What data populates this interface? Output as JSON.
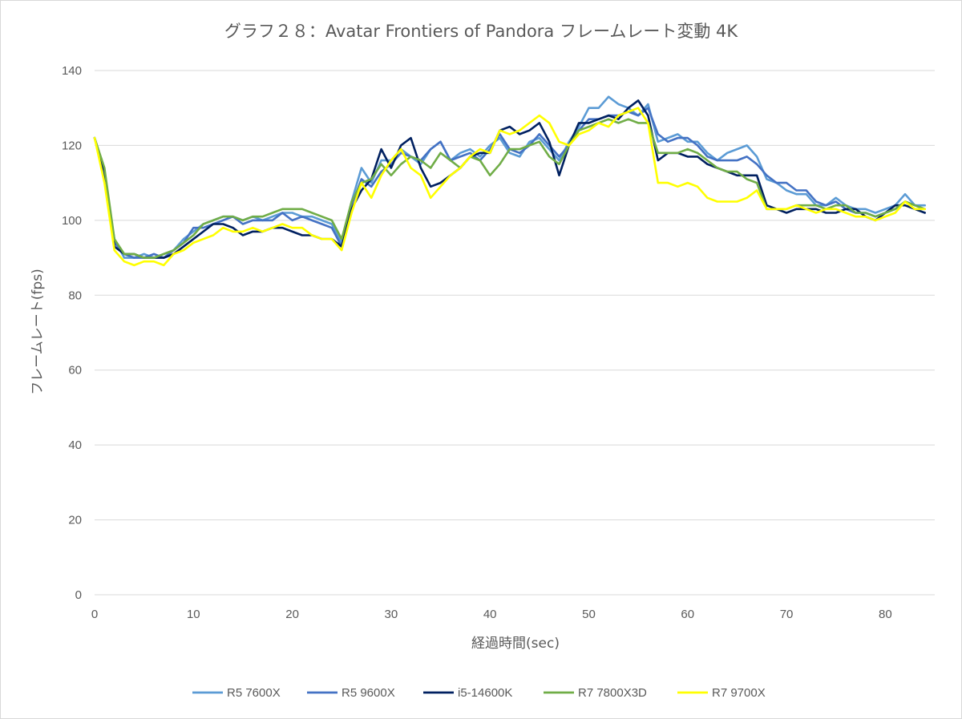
{
  "chart_data": {
    "type": "line",
    "title": "グラフ２８：Avatar Frontiers of Pandora フレームレート変動 4K",
    "xlabel": "経過時間(sec)",
    "ylabel": "フレームレート(fps)",
    "xlim": [
      0,
      85
    ],
    "ylim": [
      0,
      140
    ],
    "x_ticks": [
      0,
      10,
      20,
      30,
      40,
      50,
      60,
      70,
      80
    ],
    "y_ticks": [
      0,
      20,
      40,
      60,
      80,
      100,
      120,
      140
    ],
    "grid": "horizontal",
    "legend": "bottom",
    "series": [
      {
        "name": "R5 7600X",
        "color": "#5B9BD5",
        "x": [
          0,
          1,
          2,
          3,
          4,
          5,
          6,
          7,
          8,
          9,
          10,
          11,
          12,
          13,
          14,
          15,
          16,
          17,
          18,
          19,
          20,
          21,
          22,
          23,
          24,
          25,
          26,
          27,
          28,
          29,
          30,
          31,
          32,
          33,
          34,
          35,
          36,
          37,
          38,
          39,
          40,
          41,
          42,
          43,
          44,
          45,
          46,
          47,
          48,
          49,
          50,
          51,
          52,
          53,
          54,
          55,
          56,
          57,
          58,
          59,
          60,
          61,
          62,
          63,
          64,
          65,
          66,
          67,
          68,
          69,
          70,
          71,
          72,
          73,
          74,
          75,
          76,
          77,
          78,
          79,
          80,
          81,
          82,
          83,
          84
        ],
        "y": [
          122,
          112,
          95,
          90,
          90,
          91,
          90,
          91,
          92,
          95,
          97,
          99,
          100,
          101,
          101,
          100,
          101,
          100,
          101,
          102,
          102,
          101,
          101,
          100,
          99,
          94,
          105,
          114,
          110,
          116,
          116,
          119,
          117,
          115,
          119,
          121,
          116,
          118,
          119,
          117,
          120,
          122,
          118,
          117,
          121,
          122,
          119,
          116,
          121,
          125,
          130,
          130,
          133,
          131,
          130,
          128,
          131,
          121,
          122,
          123,
          121,
          121,
          118,
          116,
          118,
          119,
          120,
          117,
          111,
          110,
          108,
          107,
          107,
          104,
          104,
          106,
          104,
          103,
          103,
          102,
          103,
          104,
          107,
          104,
          104
        ]
      },
      {
        "name": "R5 9600X",
        "color": "#4472C4",
        "x": [
          0,
          1,
          2,
          3,
          4,
          5,
          6,
          7,
          8,
          9,
          10,
          11,
          12,
          13,
          14,
          15,
          16,
          17,
          18,
          19,
          20,
          21,
          22,
          23,
          24,
          25,
          26,
          27,
          28,
          29,
          30,
          31,
          32,
          33,
          34,
          35,
          36,
          37,
          38,
          39,
          40,
          41,
          42,
          43,
          44,
          45,
          46,
          47,
          48,
          49,
          50,
          51,
          52,
          53,
          54,
          55,
          56,
          57,
          58,
          59,
          60,
          61,
          62,
          63,
          64,
          65,
          66,
          67,
          68,
          69,
          70,
          71,
          72,
          73,
          74,
          75,
          76,
          77,
          78,
          79,
          80,
          81,
          82,
          83,
          84
        ],
        "y": [
          122,
          113,
          94,
          91,
          90,
          90,
          91,
          90,
          92,
          94,
          98,
          98,
          99,
          100,
          101,
          99,
          100,
          100,
          100,
          102,
          100,
          101,
          100,
          99,
          98,
          93,
          104,
          111,
          109,
          113,
          115,
          118,
          117,
          116,
          119,
          121,
          116,
          117,
          118,
          116,
          119,
          123,
          119,
          118,
          120,
          123,
          120,
          117,
          120,
          124,
          127,
          127,
          128,
          128,
          129,
          128,
          130,
          123,
          121,
          122,
          122,
          120,
          117,
          116,
          116,
          116,
          117,
          115,
          112,
          110,
          110,
          108,
          108,
          105,
          104,
          105,
          103,
          102,
          102,
          101,
          102,
          103,
          105,
          104,
          103
        ]
      },
      {
        "name": "i5-14600K",
        "color": "#002060",
        "x": [
          0,
          1,
          2,
          3,
          4,
          5,
          6,
          7,
          8,
          9,
          10,
          11,
          12,
          13,
          14,
          15,
          16,
          17,
          18,
          19,
          20,
          21,
          22,
          23,
          24,
          25,
          26,
          27,
          28,
          29,
          30,
          31,
          32,
          33,
          34,
          35,
          36,
          37,
          38,
          39,
          40,
          41,
          42,
          43,
          44,
          45,
          46,
          47,
          48,
          49,
          50,
          51,
          52,
          53,
          54,
          55,
          56,
          57,
          58,
          59,
          60,
          61,
          62,
          63,
          64,
          65,
          66,
          67,
          68,
          69,
          70,
          71,
          72,
          73,
          74,
          75,
          76,
          77,
          78,
          79,
          80,
          81,
          82,
          83,
          84
        ],
        "y": [
          122,
          113,
          93,
          91,
          91,
          90,
          90,
          90,
          91,
          93,
          95,
          97,
          99,
          99,
          98,
          96,
          97,
          97,
          98,
          98,
          97,
          96,
          96,
          95,
          95,
          93,
          103,
          108,
          111,
          119,
          114,
          120,
          122,
          114,
          109,
          110,
          112,
          114,
          117,
          118,
          118,
          124,
          125,
          123,
          124,
          126,
          121,
          112,
          120,
          126,
          126,
          127,
          128,
          127,
          130,
          132,
          128,
          116,
          118,
          118,
          117,
          117,
          115,
          114,
          113,
          112,
          112,
          112,
          104,
          103,
          102,
          103,
          103,
          103,
          102,
          102,
          103,
          103,
          101,
          100,
          102,
          104,
          104,
          103,
          102
        ]
      },
      {
        "name": "R7 7800X3D",
        "color": "#70AD47",
        "x": [
          0,
          1,
          2,
          3,
          4,
          5,
          6,
          7,
          8,
          9,
          10,
          11,
          12,
          13,
          14,
          15,
          16,
          17,
          18,
          19,
          20,
          21,
          22,
          23,
          24,
          25,
          26,
          27,
          28,
          29,
          30,
          31,
          32,
          33,
          34,
          35,
          36,
          37,
          38,
          39,
          40,
          41,
          42,
          43,
          44,
          45,
          46,
          47,
          48,
          49,
          50,
          51,
          52,
          53,
          54,
          55,
          56,
          57,
          58,
          59,
          60,
          61,
          62,
          63,
          64,
          65,
          66,
          67,
          68,
          69,
          70,
          71,
          72,
          73,
          74,
          75,
          76,
          77,
          78,
          79,
          80,
          81,
          82,
          83,
          84
        ],
        "y": [
          122,
          114,
          95,
          91,
          91,
          90,
          90,
          91,
          92,
          94,
          96,
          99,
          100,
          101,
          101,
          100,
          101,
          101,
          102,
          103,
          103,
          103,
          102,
          101,
          100,
          95,
          105,
          110,
          111,
          115,
          112,
          115,
          117,
          116,
          114,
          118,
          116,
          114,
          117,
          116,
          112,
          115,
          119,
          119,
          120,
          121,
          117,
          115,
          120,
          124,
          125,
          126,
          127,
          126,
          127,
          126,
          126,
          118,
          118,
          118,
          119,
          118,
          116,
          114,
          113,
          113,
          111,
          110,
          103,
          103,
          103,
          104,
          104,
          104,
          103,
          104,
          104,
          102,
          102,
          101,
          102,
          103,
          105,
          104,
          103
        ]
      },
      {
        "name": "R7 9700X",
        "color": "#FFFF00",
        "x": [
          0,
          1,
          2,
          3,
          4,
          5,
          6,
          7,
          8,
          9,
          10,
          11,
          12,
          13,
          14,
          15,
          16,
          17,
          18,
          19,
          20,
          21,
          22,
          23,
          24,
          25,
          26,
          27,
          28,
          29,
          30,
          31,
          32,
          33,
          34,
          35,
          36,
          37,
          38,
          39,
          40,
          41,
          42,
          43,
          44,
          45,
          46,
          47,
          48,
          49,
          50,
          51,
          52,
          53,
          54,
          55,
          56,
          57,
          58,
          59,
          60,
          61,
          62,
          63,
          64,
          65,
          66,
          67,
          68,
          69,
          70,
          71,
          72,
          73,
          74,
          75,
          76,
          77,
          78,
          79,
          80,
          81,
          82,
          83,
          84
        ],
        "y": [
          122,
          110,
          92,
          89,
          88,
          89,
          89,
          88,
          91,
          92,
          94,
          95,
          96,
          98,
          97,
          97,
          98,
          97,
          98,
          99,
          98,
          98,
          96,
          95,
          95,
          92,
          102,
          110,
          106,
          112,
          116,
          119,
          114,
          112,
          106,
          109,
          112,
          114,
          117,
          119,
          118,
          124,
          123,
          124,
          126,
          128,
          126,
          121,
          120,
          123,
          124,
          126,
          125,
          128,
          129,
          130,
          126,
          110,
          110,
          109,
          110,
          109,
          106,
          105,
          105,
          105,
          106,
          108,
          103,
          103,
          103,
          104,
          103,
          102,
          103,
          103,
          102,
          101,
          101,
          100,
          101,
          102,
          105,
          103,
          103
        ]
      }
    ]
  }
}
